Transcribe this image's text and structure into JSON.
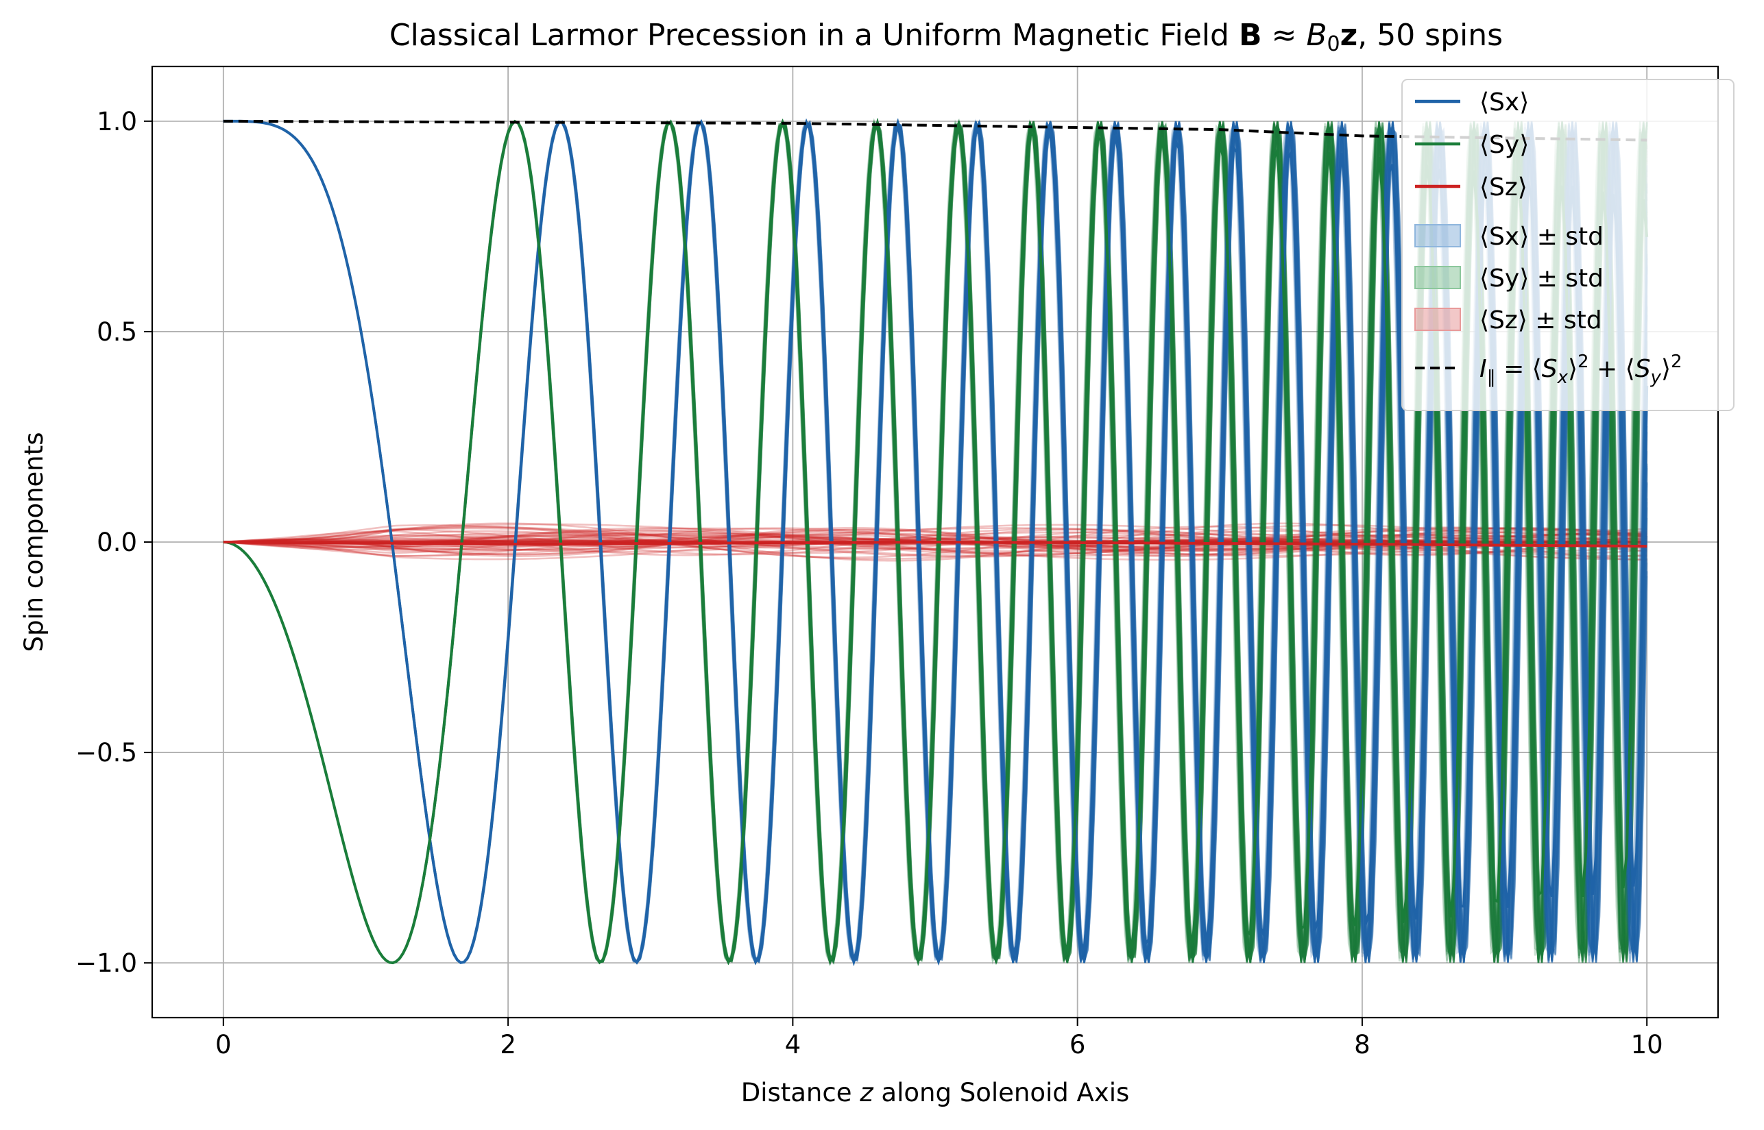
{
  "chart_data": {
    "type": "line",
    "title": {
      "prefix": "Classical Larmor Precession in a Uniform Magnetic Field ",
      "bold_symbol": "B",
      "approx": " ≈ ",
      "b_symbol": "B",
      "b_subscript": "0",
      "z_symbol": "z",
      "suffix": ", 50 spins"
    },
    "xlabel": {
      "prefix": "Distance ",
      "var": "z",
      "suffix": " along Solenoid Axis"
    },
    "ylabel": "Spin components",
    "xlim": [
      -0.5,
      10.5
    ],
    "ylim": [
      -1.13,
      1.13
    ],
    "x_ticks": [
      0,
      2,
      4,
      6,
      8,
      10
    ],
    "x_tick_labels": [
      "0",
      "2",
      "4",
      "6",
      "8",
      "10"
    ],
    "y_ticks": [
      -1.0,
      -0.5,
      0.0,
      0.5,
      1.0
    ],
    "y_tick_labels": [
      "−1.0",
      "−0.5",
      "0.0",
      "0.5",
      "1.0"
    ],
    "grid": true,
    "legend_position": "top-right",
    "n_spins": 50,
    "colors": {
      "sx": "#1f63a8",
      "sy": "#1a7d3a",
      "sz": "#cc2222",
      "sx_band": "#8fb6dd",
      "sy_band": "#8cc79c",
      "sz_band": "#e89a9a",
      "intensity": "#000000",
      "grid": "#b0b0b0"
    },
    "legend": [
      {
        "key": "sx",
        "label": "⟨Sx⟩",
        "kind": "line"
      },
      {
        "key": "sy",
        "label": "⟨Sy⟩",
        "kind": "line"
      },
      {
        "key": "sz",
        "label": "⟨Sz⟩",
        "kind": "line"
      },
      {
        "key": "sx_band",
        "label": "⟨Sx⟩ ± std",
        "kind": "patch"
      },
      {
        "key": "sy_band",
        "label": "⟨Sy⟩ ± std",
        "kind": "patch"
      },
      {
        "key": "sz_band",
        "label": "⟨Sz⟩ ± std",
        "kind": "patch"
      }
    ],
    "legend_intensity": {
      "lhs": "I",
      "lhs_sub": "∥",
      "eq": " = ⟨",
      "s1": "S",
      "s1_sub": "x",
      "close1": "⟩",
      "sup1": "2",
      "plus": " + ⟨",
      "s2": "S",
      "s2_sub": "y",
      "close2": "⟩",
      "sup2": "2"
    },
    "model": {
      "phase_quadratic_coefficient": 1.12,
      "sx_sign": 1,
      "sy_sign": -1,
      "phase_spread_fraction": 0.006,
      "sz_amplitude": 0.045
    },
    "series": [
      {
        "name": "⟨Sx⟩",
        "color": "#1f63a8",
        "points": [
          [
            0,
            1.0
          ],
          [
            1.81,
            -1.0
          ],
          [
            2.59,
            1.0
          ],
          [
            3.22,
            -1.0
          ],
          [
            3.78,
            1.0
          ],
          [
            4.29,
            -1.0
          ],
          [
            4.81,
            1.0
          ],
          [
            5.31,
            -1.0
          ],
          [
            5.83,
            0.98
          ],
          [
            6.34,
            -0.98
          ],
          [
            6.93,
            0.97
          ],
          [
            7.56,
            -0.97
          ],
          [
            8.4,
            0.96
          ],
          [
            10.0,
            -0.69
          ]
        ]
      },
      {
        "name": "⟨Sy⟩",
        "color": "#1a7d3a",
        "points": [
          [
            0,
            0.0
          ],
          [
            1.27,
            -1.0
          ],
          [
            2.24,
            1.0
          ],
          [
            2.92,
            -1.0
          ],
          [
            3.52,
            1.0
          ],
          [
            4.05,
            -1.0
          ],
          [
            4.56,
            1.0
          ],
          [
            5.06,
            -1.0
          ],
          [
            5.56,
            0.98
          ],
          [
            6.09,
            -0.98
          ],
          [
            6.62,
            0.97
          ],
          [
            7.24,
            -0.97
          ],
          [
            7.93,
            0.96
          ],
          [
            9.08,
            -0.96
          ],
          [
            10.0,
            -0.67
          ]
        ]
      },
      {
        "name": "⟨Sz⟩",
        "color": "#cc2222",
        "points": [
          [
            0,
            0.0
          ],
          [
            2.0,
            -0.005
          ],
          [
            5.0,
            0.0
          ],
          [
            8.0,
            -0.005
          ],
          [
            10.0,
            -0.01
          ]
        ]
      },
      {
        "name": "I∥",
        "color": "#000000",
        "points": [
          [
            0,
            1.0
          ],
          [
            4.0,
            0.995
          ],
          [
            7.0,
            0.98
          ],
          [
            8.0,
            0.965
          ],
          [
            10.0,
            0.955
          ]
        ]
      }
    ]
  }
}
